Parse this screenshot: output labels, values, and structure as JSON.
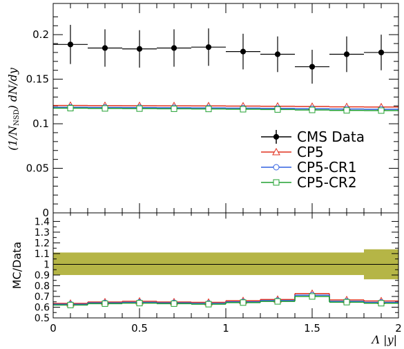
{
  "chart_data": [
    {
      "type": "line",
      "panel": "main",
      "ylabel_html": "(1/N<tspan font-size='10' dy='3' font-style='normal'>NSD</tspan><tspan dy='-3'>) dN/dy</tspan>",
      "ylabel_text": "(1/NNSD) dN/dy",
      "ylim": [
        0,
        0.235
      ],
      "yticks": [
        0,
        0.05,
        0.1,
        0.15,
        0.2
      ],
      "ytick_labels": [
        "0",
        "0.05",
        "0.1",
        "0.15",
        "0.2"
      ],
      "x_bins": [
        [
          0,
          0.2
        ],
        [
          0.2,
          0.4
        ],
        [
          0.4,
          0.6
        ],
        [
          0.6,
          0.8
        ],
        [
          0.8,
          1.0
        ],
        [
          1.0,
          1.2
        ],
        [
          1.2,
          1.4
        ],
        [
          1.4,
          1.6
        ],
        [
          1.6,
          1.8
        ],
        [
          1.8,
          2.0
        ]
      ],
      "x": [
        0.1,
        0.3,
        0.5,
        0.7,
        0.9,
        1.1,
        1.3,
        1.5,
        1.7,
        1.9
      ],
      "series": [
        {
          "name": "CMS Data",
          "color": "#000000",
          "marker": "filled-circle",
          "values": [
            0.189,
            0.185,
            0.184,
            0.185,
            0.186,
            0.181,
            0.178,
            0.164,
            0.178,
            0.18
          ],
          "errors": [
            0.022,
            0.021,
            0.021,
            0.021,
            0.021,
            0.02,
            0.02,
            0.019,
            0.02,
            0.02
          ]
        },
        {
          "name": "CP5",
          "color": "#e0301e",
          "marker": "open-triangle",
          "values": [
            0.1205,
            0.1203,
            0.1202,
            0.1201,
            0.12,
            0.1198,
            0.1196,
            0.1193,
            0.119,
            0.1188
          ]
        },
        {
          "name": "CP5-CR1",
          "color": "#3060e0",
          "marker": "open-circle",
          "values": [
            0.1185,
            0.1183,
            0.1182,
            0.118,
            0.1178,
            0.1175,
            0.1172,
            0.1168,
            0.1165,
            0.1162
          ]
        },
        {
          "name": "CP5-CR2",
          "color": "#20a030",
          "marker": "open-square",
          "values": [
            0.1175,
            0.1172,
            0.117,
            0.1168,
            0.1166,
            0.1163,
            0.116,
            0.1155,
            0.115,
            0.1148
          ]
        }
      ],
      "legend_position": "right"
    },
    {
      "type": "line",
      "panel": "ratio",
      "ylabel": "MC/Data",
      "xlabel_html": "Λ |y|",
      "xlim": [
        0,
        2
      ],
      "ylim": [
        0.5,
        1.48
      ],
      "yticks": [
        0.5,
        0.6,
        0.7,
        0.8,
        0.9,
        1,
        1.1,
        1.2,
        1.3,
        1.4
      ],
      "ytick_labels": [
        "0.5",
        "0.6",
        "0.7",
        "0.8",
        "0.9",
        "1",
        "1.1",
        "1.2",
        "1.3",
        "1.4"
      ],
      "xticks": [
        0,
        0.5,
        1,
        1.5,
        2
      ],
      "xtick_labels": [
        "0",
        "0.5",
        "1",
        "1.5",
        "2"
      ],
      "band_color": "#b5b546",
      "band": [
        [
          0.9,
          1.11
        ],
        [
          0.9,
          1.11
        ],
        [
          0.9,
          1.11
        ],
        [
          0.9,
          1.11
        ],
        [
          0.9,
          1.11
        ],
        [
          0.9,
          1.11
        ],
        [
          0.9,
          1.11
        ],
        [
          0.9,
          1.11
        ],
        [
          0.9,
          1.11
        ],
        [
          0.86,
          1.14
        ]
      ],
      "series": [
        {
          "name": "CP5",
          "color": "#e0301e",
          "marker": "open-triangle",
          "values": [
            0.635,
            0.648,
            0.655,
            0.648,
            0.645,
            0.66,
            0.672,
            0.727,
            0.668,
            0.658
          ]
        },
        {
          "name": "CP5-CR1",
          "color": "#3060e0",
          "marker": "open-circle",
          "values": [
            0.627,
            0.64,
            0.645,
            0.64,
            0.635,
            0.65,
            0.662,
            0.712,
            0.655,
            0.645
          ]
        },
        {
          "name": "CP5-CR2",
          "color": "#20a030",
          "marker": "open-square",
          "values": [
            0.62,
            0.633,
            0.638,
            0.633,
            0.628,
            0.643,
            0.654,
            0.7,
            0.647,
            0.637
          ]
        }
      ]
    }
  ]
}
